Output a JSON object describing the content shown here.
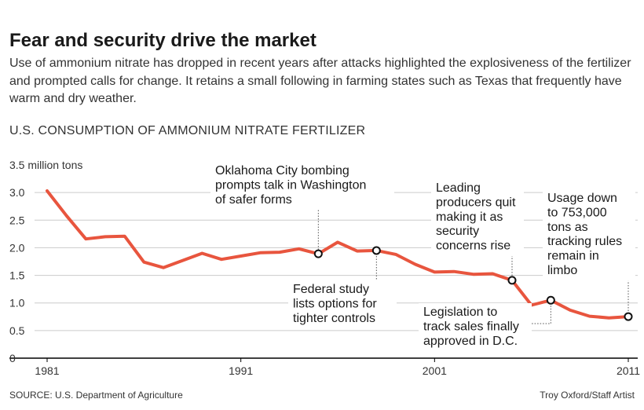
{
  "headline": "Fear and security drive the market",
  "subtitle": "Use of ammonium nitrate has dropped in recent years after attacks highlighted the explosiveness of the fertilizer and prompted calls for change. It retains a small following in farming states such as Texas that frequently have warm and dry weather.",
  "source": "SOURCE: U.S. Department of Agriculture",
  "credit": "Troy Oxford/Staff Artist",
  "colors": {
    "line": "#e8553e",
    "grid": "#cccccc",
    "axis": "#000000",
    "text": "#222222"
  },
  "chart_data": {
    "type": "line",
    "title": "U.S. CONSUMPTION OF AMMONIUM NITRATE FERTILIZER",
    "ylabel": "",
    "ylim": [
      0,
      3.5
    ],
    "xlim": [
      1981,
      2011
    ],
    "grid": true,
    "yticks": [
      {
        "value": 3.5,
        "label": "3.5 million tons"
      },
      {
        "value": 3.0,
        "label": "3.0"
      },
      {
        "value": 2.5,
        "label": "2.5"
      },
      {
        "value": 2.0,
        "label": "2.0"
      },
      {
        "value": 1.5,
        "label": "1.5"
      },
      {
        "value": 1.0,
        "label": "1.0"
      },
      {
        "value": 0.5,
        "label": "0.5"
      },
      {
        "value": 0,
        "label": "0"
      }
    ],
    "xticks": [
      {
        "value": 1981,
        "label": "1981"
      },
      {
        "value": 1991,
        "label": "1991"
      },
      {
        "value": 2001,
        "label": "2001"
      },
      {
        "value": 2011,
        "label": "2011"
      }
    ],
    "series": [
      {
        "x": [
          1981,
          1982,
          1983,
          1984,
          1985,
          1986,
          1987,
          1988,
          1989,
          1990,
          1991,
          1992,
          1993,
          1994,
          1995,
          1996,
          1997,
          1998,
          1999,
          2000,
          2001,
          2002,
          2003,
          2004,
          2005,
          2006,
          2007,
          2008,
          2009,
          2010,
          2011
        ],
        "values": [
          3.03,
          2.58,
          2.16,
          2.2,
          2.21,
          1.74,
          1.64,
          1.77,
          1.9,
          1.79,
          1.85,
          1.91,
          1.92,
          1.98,
          1.89,
          2.1,
          1.94,
          1.95,
          1.88,
          1.7,
          1.56,
          1.57,
          1.52,
          1.53,
          1.41,
          0.96,
          1.05,
          0.87,
          0.76,
          0.73,
          0.753
        ]
      }
    ],
    "annotations": [
      {
        "text": "Oklahoma City bombing prompts talk in Washington of safer forms",
        "x": 1995,
        "y": 1.89
      },
      {
        "text": "Federal study lists options for tighter controls",
        "x": 1998,
        "y": 1.95
      },
      {
        "text": "Leading producers quit making it as security concerns rise",
        "x": 2005,
        "y": 1.41
      },
      {
        "text": "Legislation to track sales finally approved in D.C.",
        "x": 2007,
        "y": 1.05
      },
      {
        "text": "Usage down to 753,000 tons as tracking rules remain in limbo",
        "x": 2011,
        "y": 0.753
      }
    ]
  }
}
